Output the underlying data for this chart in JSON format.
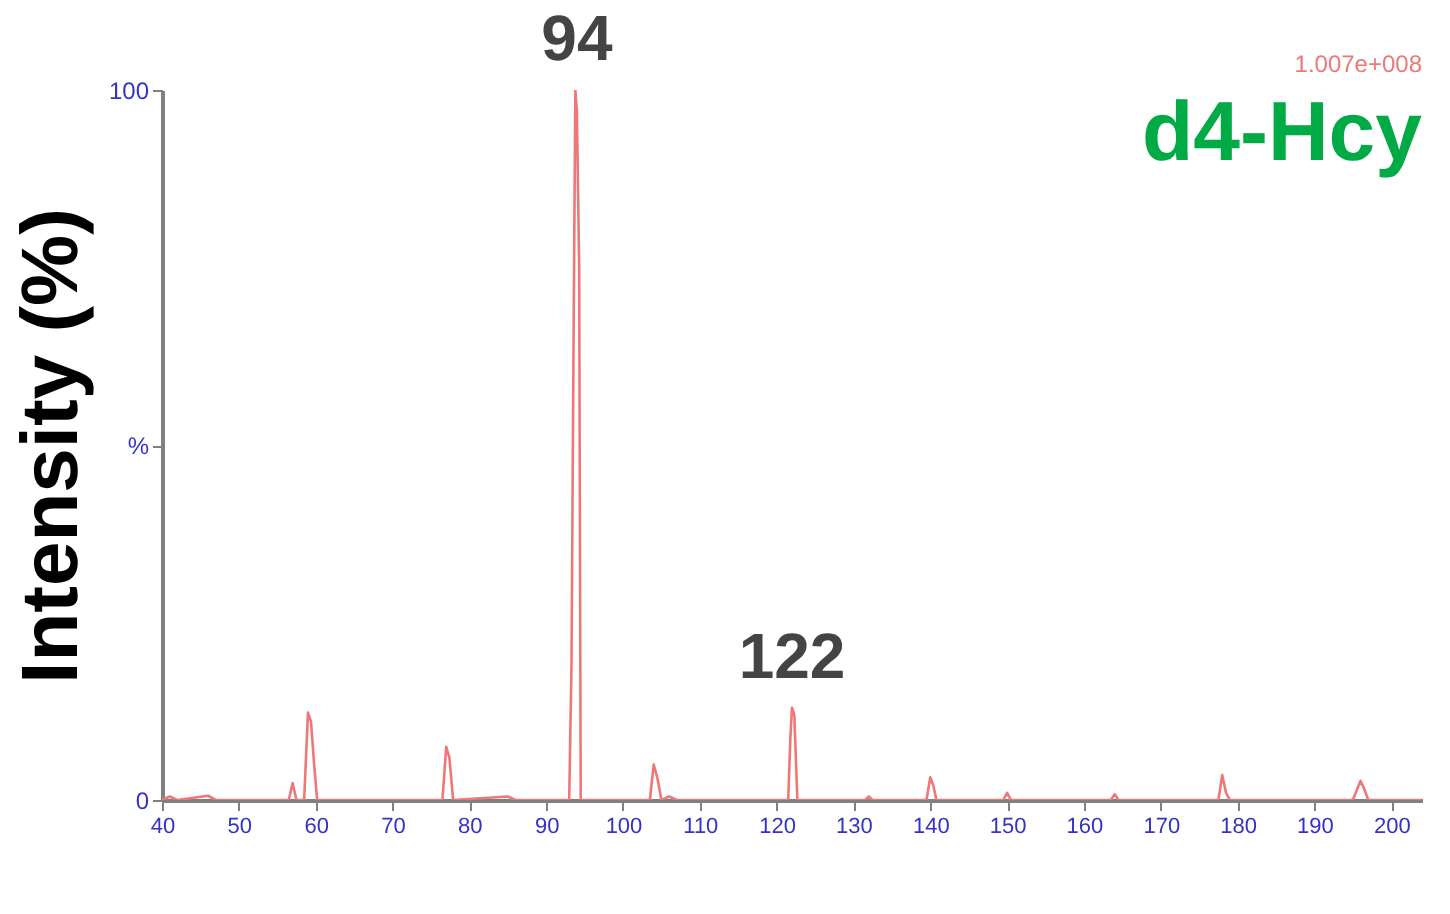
{
  "chart_data": {
    "type": "line",
    "title": "d4-Hcy",
    "ylabel": "Intensity (%)",
    "xlim": [
      40,
      204
    ],
    "xticks": [
      40,
      50,
      60,
      70,
      80,
      90,
      100,
      110,
      120,
      130,
      140,
      150,
      160,
      170,
      180,
      190,
      200
    ],
    "ylim": [
      0,
      100
    ],
    "yticks": [
      0,
      {
        "value": 50,
        "label": "%"
      },
      100
    ],
    "grid": false,
    "marker": "none",
    "line_style": "solid",
    "annotations": [
      {
        "text": "94",
        "x": 94,
        "y": 100
      },
      {
        "text": "122",
        "x": 122,
        "y": 13
      },
      "1.007e+008"
    ],
    "series": [
      {
        "color": "#ee7777",
        "x": [
          40,
          41,
          42,
          46,
          47,
          56.5,
          57,
          57.5,
          58.5,
          59,
          59.4,
          59.8,
          60.2,
          76.5,
          77,
          77.4,
          77.9,
          85,
          86,
          93,
          93.3,
          93.6,
          93.8,
          94,
          94.3,
          94.5,
          103.5,
          104,
          104.5,
          105,
          106,
          107,
          121.5,
          121.8,
          122,
          122.3,
          122.7,
          131.5,
          132,
          132.5,
          139.5,
          140,
          140.4,
          140.8,
          149.5,
          150,
          150.5,
          163.5,
          164,
          164.5,
          177.5,
          178,
          178.5,
          179,
          195,
          196,
          196.5,
          197,
          204
        ],
        "values": [
          0,
          0.5,
          0,
          0.6,
          0,
          0,
          2.4,
          0,
          0,
          12.3,
          11,
          5,
          0,
          0,
          7.5,
          6,
          0,
          0.5,
          0,
          0,
          19,
          70,
          100,
          97,
          75,
          0,
          0,
          5,
          3,
          0,
          0.5,
          0,
          0,
          9,
          13,
          12,
          0,
          0,
          0.5,
          0,
          0,
          3.2,
          2,
          0,
          0,
          1,
          0,
          0,
          0.8,
          0,
          0,
          3.5,
          1,
          0,
          0,
          2.7,
          1.5,
          0,
          0
        ]
      }
    ]
  }
}
